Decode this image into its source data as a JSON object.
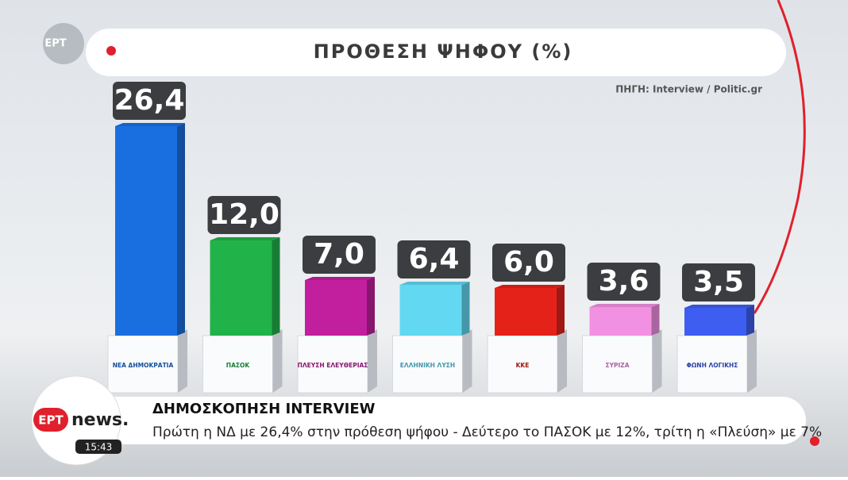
{
  "chart_data": {
    "type": "bar",
    "title": "ΠΡΟΘΕΣΗ ΨΗΦΟΥ (%)",
    "source": "ΠΗΓΗ: Interview / Politic.gr",
    "categories": [
      "ΝΕΑ ΔΗΜΟΚΡΑΤΙΑ",
      "ΠΑΣΟΚ",
      "ΠΛΕΥΣΗ ΕΛΕΥΘΕΡΙΑΣ",
      "ΕΛΛΗΝΙΚΗ ΛΥΣΗ",
      "ΚΚΕ",
      "ΣΥΡΙΖΑ",
      "ΦΩΝΗ ΛΟΓΙΚΗΣ"
    ],
    "values": [
      26.4,
      12.0,
      7.0,
      6.4,
      6.0,
      3.6,
      3.5
    ],
    "value_labels": [
      "26,4",
      "12,0",
      "7,0",
      "6,4",
      "6,0",
      "3,6",
      "3,5"
    ],
    "colors": [
      "#1a6fe0",
      "#22b24a",
      "#c21f9e",
      "#62d8f2",
      "#e5221a",
      "#f290e2",
      "#3d5ef0"
    ]
  },
  "channel": {
    "corner_logo": "ΕΡΤ",
    "logo_ert": "ΕΡΤ",
    "logo_news": "news.",
    "time": "15:43"
  },
  "ticker": {
    "headline": "ΔΗΜΟΣΚΟΠΗΣΗ INTERVIEW",
    "text": "Πρώτη η ΝΔ με 26,4% στην πρόθεση ψήφου - Δεύτερο το ΠΑΣΟΚ με 12%, τρίτη η «Πλεύση» με 7%"
  }
}
